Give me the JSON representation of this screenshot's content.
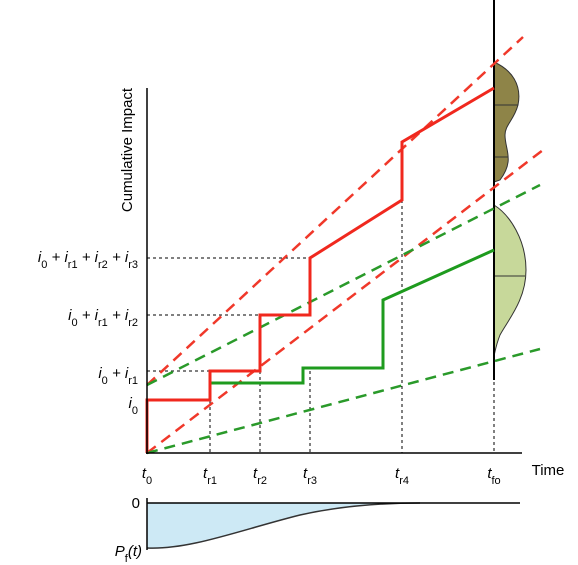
{
  "y_axis_title": "Cumulative Impact",
  "x_axis_title": "Time",
  "x_labels": [
    [
      "t",
      "0"
    ],
    [
      "t",
      "r1"
    ],
    [
      "t",
      "r2"
    ],
    [
      "t",
      "r3"
    ],
    [
      "t",
      "r4"
    ],
    [
      "t",
      "fo"
    ]
  ],
  "y_labels": [
    [
      "i",
      "0"
    ],
    [
      "i",
      "0",
      " + i",
      "r1"
    ],
    [
      "i",
      "0",
      " + i",
      "r1",
      " + i",
      "r2"
    ],
    [
      "i",
      "0",
      " + i",
      "r1",
      " + i",
      "r2",
      " + i",
      "r3"
    ]
  ],
  "lower_panel": {
    "zero_label": "0",
    "curve_label": [
      "P",
      "f",
      "(t)"
    ]
  }
}
